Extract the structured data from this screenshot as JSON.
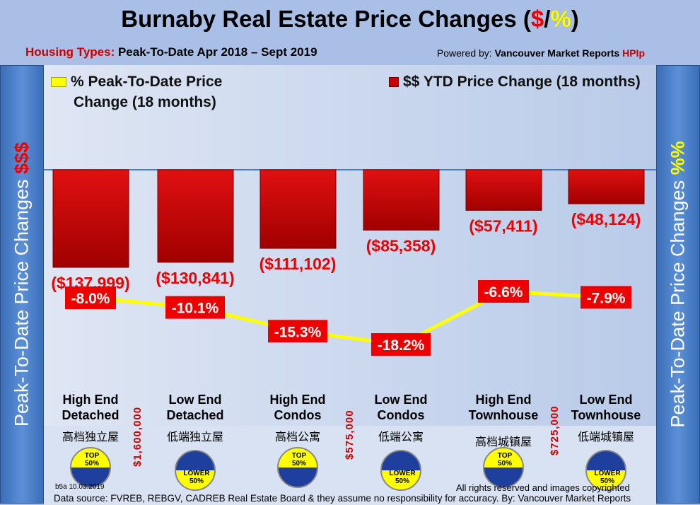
{
  "title_parts": {
    "main": "Burnaby Real Estate Price Changes (",
    "dollar": "$",
    "slash": "/",
    "pct": "%",
    "end": ")"
  },
  "subtitle": {
    "label": "Housing Types:",
    "text": " Peak-To-Date Apr 2018 – Sept 2019"
  },
  "powered": {
    "prefix": "Powered by: ",
    "brand": "Vancouver Market Reports ",
    "hpi": "HPIp"
  },
  "left_axis": {
    "text": "Peak-To-Date Price Changes ",
    "unit": "$$$"
  },
  "right_axis": {
    "text": "Peak-To-Date  Price  Changes ",
    "unit": "%%"
  },
  "colors": {
    "bar": "#cc0000",
    "line": "#ffff00",
    "label_bg": "#ee0000",
    "top_badge": "#ffff00",
    "lower_badge": "#1f3f9e"
  },
  "chart_data": {
    "type": "bar+line",
    "categories": [
      "High End Detached",
      "Low End Detached",
      "High End Condos",
      "Low End Condos",
      "High End Townhouse",
      "Low End Townhouse"
    ],
    "series": [
      {
        "name": "$$ YTD Price Change (18 months)",
        "type": "bar",
        "values": [
          -137999,
          -130841,
          -111102,
          -85358,
          -57411,
          -48124
        ],
        "labels": [
          "($137,999)",
          "($130,841)",
          "($111,102)",
          "($85,358)",
          "($57,411)",
          "($48,124)"
        ]
      },
      {
        "name": "% Peak-To-Date Price Change (18 months)",
        "type": "line",
        "values": [
          -8.0,
          -10.1,
          -15.3,
          -18.2,
          -6.6,
          -7.9
        ],
        "labels": [
          "-8.0%",
          "-10.1%",
          "-15.3%",
          "-18.2%",
          "-6.6%",
          "-7.9%"
        ]
      }
    ],
    "legend": {
      "line_line1": "% Peak-To-Date Price",
      "line_line2": "Change (18 months)",
      "bar": "$$ YTD Price Change (18 months)"
    }
  },
  "categories_display": [
    {
      "l1": "High End",
      "l2": "Detached",
      "zh": "高档独立屋",
      "badge": "top"
    },
    {
      "l1": "Low End",
      "l2": "Detached",
      "zh": "低端独立屋",
      "badge": "lower"
    },
    {
      "l1": "High End",
      "l2": "Condos",
      "zh": "高档公寓",
      "badge": "top"
    },
    {
      "l1": "Low End",
      "l2": "Condos",
      "zh": "低端公寓",
      "badge": "lower"
    },
    {
      "l1": "High End",
      "l2": "Townhouse",
      "zh": "高档城镇屋",
      "badge": "top"
    },
    {
      "l1": "Low End",
      "l2": "Townhouse",
      "zh": "低端城镇屋",
      "badge": "lower"
    }
  ],
  "badges": {
    "top": [
      "TOP",
      "50%"
    ],
    "lower": [
      "LOWER",
      "50%"
    ]
  },
  "thresholds": [
    "$1,600,000",
    "$575,000",
    "$725,000"
  ],
  "version": "b5a 10.03.2019",
  "rights": "All rights reserved and  images copyrighted",
  "source": "Data source: FVREB, REBGV, CADREB Real Estate Board & they assume no responsibility for accuracy. By: Vancouver Market Reports"
}
